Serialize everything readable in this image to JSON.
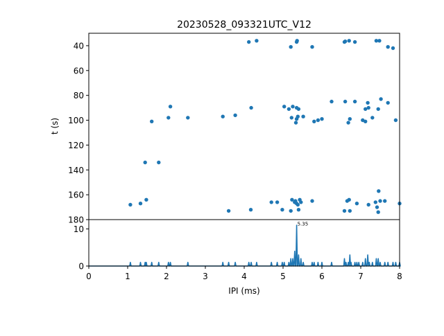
{
  "chart_data": [
    {
      "type": "scatter",
      "title": "20230528_093321UTC_V12",
      "xlabel": "",
      "ylabel": "t (s)",
      "xlim": [
        0,
        8
      ],
      "ylim": [
        180,
        30
      ],
      "y_inverted": true,
      "grid": false,
      "color": "#1f77b4",
      "yticks": [
        40,
        60,
        80,
        100,
        120,
        140,
        160,
        180
      ],
      "points": [
        [
          4.12,
          37
        ],
        [
          4.32,
          36
        ],
        [
          5.2,
          41
        ],
        [
          5.35,
          37
        ],
        [
          5.36,
          36
        ],
        [
          5.75,
          41
        ],
        [
          6.58,
          37
        ],
        [
          6.6,
          36.5
        ],
        [
          6.7,
          36
        ],
        [
          6.85,
          37
        ],
        [
          7.4,
          36
        ],
        [
          7.48,
          36
        ],
        [
          7.7,
          41
        ],
        [
          7.83,
          42
        ],
        [
          2.1,
          89
        ],
        [
          4.18,
          90
        ],
        [
          5.03,
          89
        ],
        [
          5.15,
          91
        ],
        [
          5.25,
          89
        ],
        [
          5.35,
          90
        ],
        [
          5.4,
          91
        ],
        [
          6.25,
          85
        ],
        [
          6.6,
          85
        ],
        [
          6.85,
          85
        ],
        [
          7.12,
          91
        ],
        [
          7.2,
          90
        ],
        [
          7.18,
          86
        ],
        [
          7.45,
          91
        ],
        [
          7.52,
          83
        ],
        [
          7.7,
          86
        ],
        [
          1.62,
          101
        ],
        [
          2.05,
          98
        ],
        [
          2.55,
          98
        ],
        [
          3.45,
          97
        ],
        [
          3.77,
          96
        ],
        [
          5.22,
          98
        ],
        [
          5.35,
          99
        ],
        [
          5.38,
          97
        ],
        [
          5.33,
          102
        ],
        [
          5.52,
          97
        ],
        [
          5.8,
          101
        ],
        [
          5.9,
          100
        ],
        [
          6.0,
          99
        ],
        [
          6.68,
          102
        ],
        [
          6.72,
          99
        ],
        [
          7.05,
          100
        ],
        [
          7.12,
          101
        ],
        [
          7.3,
          98
        ],
        [
          7.9,
          100
        ],
        [
          1.45,
          134
        ],
        [
          1.8,
          134
        ],
        [
          1.07,
          168
        ],
        [
          1.33,
          167
        ],
        [
          1.48,
          164
        ],
        [
          3.6,
          173
        ],
        [
          4.17,
          172
        ],
        [
          4.7,
          166
        ],
        [
          4.85,
          166
        ],
        [
          4.98,
          172
        ],
        [
          5.2,
          173
        ],
        [
          5.23,
          164
        ],
        [
          5.3,
          166
        ],
        [
          5.32,
          165
        ],
        [
          5.35,
          167
        ],
        [
          5.38,
          168
        ],
        [
          5.4,
          172
        ],
        [
          5.43,
          164
        ],
        [
          5.46,
          166
        ],
        [
          5.75,
          165
        ],
        [
          6.58,
          173
        ],
        [
          6.65,
          165
        ],
        [
          6.7,
          164
        ],
        [
          6.72,
          173
        ],
        [
          6.9,
          167
        ],
        [
          7.2,
          168
        ],
        [
          7.38,
          166
        ],
        [
          7.42,
          170
        ],
        [
          7.45,
          174
        ],
        [
          7.46,
          157
        ],
        [
          7.5,
          165
        ],
        [
          7.62,
          165
        ],
        [
          8.0,
          167
        ]
      ]
    },
    {
      "type": "line",
      "title": "",
      "xlabel": "IPI (ms)",
      "ylabel": "",
      "xlim": [
        0,
        8
      ],
      "ylim": [
        0,
        12.5
      ],
      "grid": false,
      "color": "#1f77b4",
      "xticks": [
        0,
        1,
        2,
        3,
        4,
        5,
        6,
        7,
        8
      ],
      "yticks": [
        0,
        10
      ],
      "annotations": [
        {
          "x": 5.35,
          "y": 11,
          "text": "5.35"
        }
      ],
      "peaks": [
        [
          1.07,
          1
        ],
        [
          1.33,
          1
        ],
        [
          1.45,
          1
        ],
        [
          1.48,
          1
        ],
        [
          1.62,
          1
        ],
        [
          1.8,
          1
        ],
        [
          2.05,
          1
        ],
        [
          2.1,
          1
        ],
        [
          2.55,
          1
        ],
        [
          3.45,
          1
        ],
        [
          3.6,
          1
        ],
        [
          3.77,
          1
        ],
        [
          4.12,
          1
        ],
        [
          4.18,
          1
        ],
        [
          4.32,
          1
        ],
        [
          4.7,
          1
        ],
        [
          4.85,
          1
        ],
        [
          4.98,
          1
        ],
        [
          5.03,
          1
        ],
        [
          5.15,
          1
        ],
        [
          5.2,
          2
        ],
        [
          5.25,
          2
        ],
        [
          5.3,
          4
        ],
        [
          5.35,
          11
        ],
        [
          5.4,
          3
        ],
        [
          5.46,
          2
        ],
        [
          5.52,
          1
        ],
        [
          5.75,
          1
        ],
        [
          5.8,
          1
        ],
        [
          5.9,
          1
        ],
        [
          6.0,
          1
        ],
        [
          6.25,
          1
        ],
        [
          6.58,
          2
        ],
        [
          6.62,
          1
        ],
        [
          6.68,
          1
        ],
        [
          6.72,
          3
        ],
        [
          6.75,
          1
        ],
        [
          6.85,
          1
        ],
        [
          6.9,
          1
        ],
        [
          6.95,
          1
        ],
        [
          7.05,
          1
        ],
        [
          7.12,
          2
        ],
        [
          7.18,
          3
        ],
        [
          7.22,
          1
        ],
        [
          7.3,
          1
        ],
        [
          7.4,
          2
        ],
        [
          7.45,
          2
        ],
        [
          7.5,
          1
        ],
        [
          7.62,
          1
        ],
        [
          7.7,
          1
        ],
        [
          7.83,
          1
        ],
        [
          7.9,
          1
        ],
        [
          8.0,
          1
        ]
      ]
    }
  ]
}
